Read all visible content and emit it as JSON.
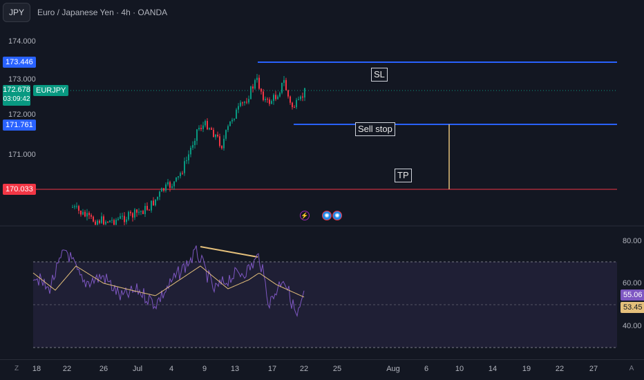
{
  "header": {
    "symbol_button": "JPY",
    "title": "Euro / Japanese Yen · 4h · OANDA"
  },
  "price_axis": {
    "labels": [
      "174.000",
      "173.000",
      "172.000",
      "171.000"
    ]
  },
  "price_tags": {
    "sl": {
      "value": "173.446",
      "color": "#2962ff"
    },
    "current": {
      "value": "172.678",
      "countdown": "03:09:42",
      "symbol": "EURJPY",
      "color": "#089981"
    },
    "sell_stop": {
      "value": "171.761",
      "color": "#2962ff"
    },
    "tp": {
      "value": "170.033",
      "color": "#f23645"
    }
  },
  "annotations": {
    "sl": "SL",
    "sell_stop": "Sell stop",
    "tp": "TP"
  },
  "rsi_axis": {
    "labels": [
      "80.00",
      "60.00",
      "40.00"
    ],
    "rsi_value": "55.06",
    "rsi_color": "#7e57c2",
    "ma_value": "53.45",
    "ma_color": "#e5c07b"
  },
  "time_axis": {
    "labels": [
      "18",
      "22",
      "26",
      "Jul",
      "4",
      "9",
      "13",
      "17",
      "22",
      "25",
      "Aug",
      "6",
      "10",
      "14",
      "19",
      "22",
      "27"
    ]
  },
  "corner_buttons": {
    "left": "Z",
    "right": "A"
  },
  "event_icons": [
    "lightning-icon",
    "earnings-icon",
    "dividend-icon"
  ]
}
